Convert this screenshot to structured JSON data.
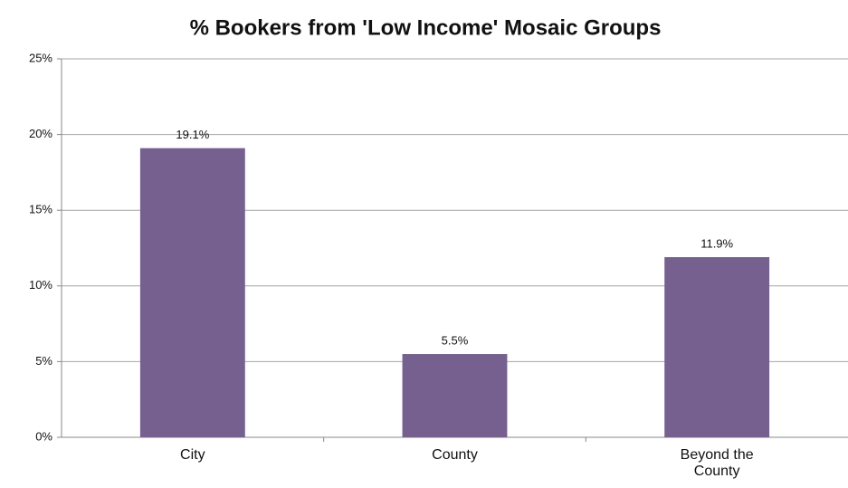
{
  "chart_data": {
    "type": "bar",
    "title": "% Bookers from 'Low Income' Mosaic Groups",
    "categories": [
      "City",
      "County",
      "Beyond the County"
    ],
    "values": [
      19.1,
      5.5,
      11.9
    ],
    "value_labels": [
      "19.1%",
      "5.5%",
      "11.9%"
    ],
    "color": "#75608f",
    "ylim": [
      0,
      25
    ],
    "yticks": [
      {
        "value": 0,
        "label": "0%"
      },
      {
        "value": 5,
        "label": "5%"
      },
      {
        "value": 10,
        "label": "10%"
      },
      {
        "value": 15,
        "label": "15%"
      },
      {
        "value": 20,
        "label": "20%"
      },
      {
        "value": 25,
        "label": "25%"
      }
    ],
    "grid": true
  }
}
